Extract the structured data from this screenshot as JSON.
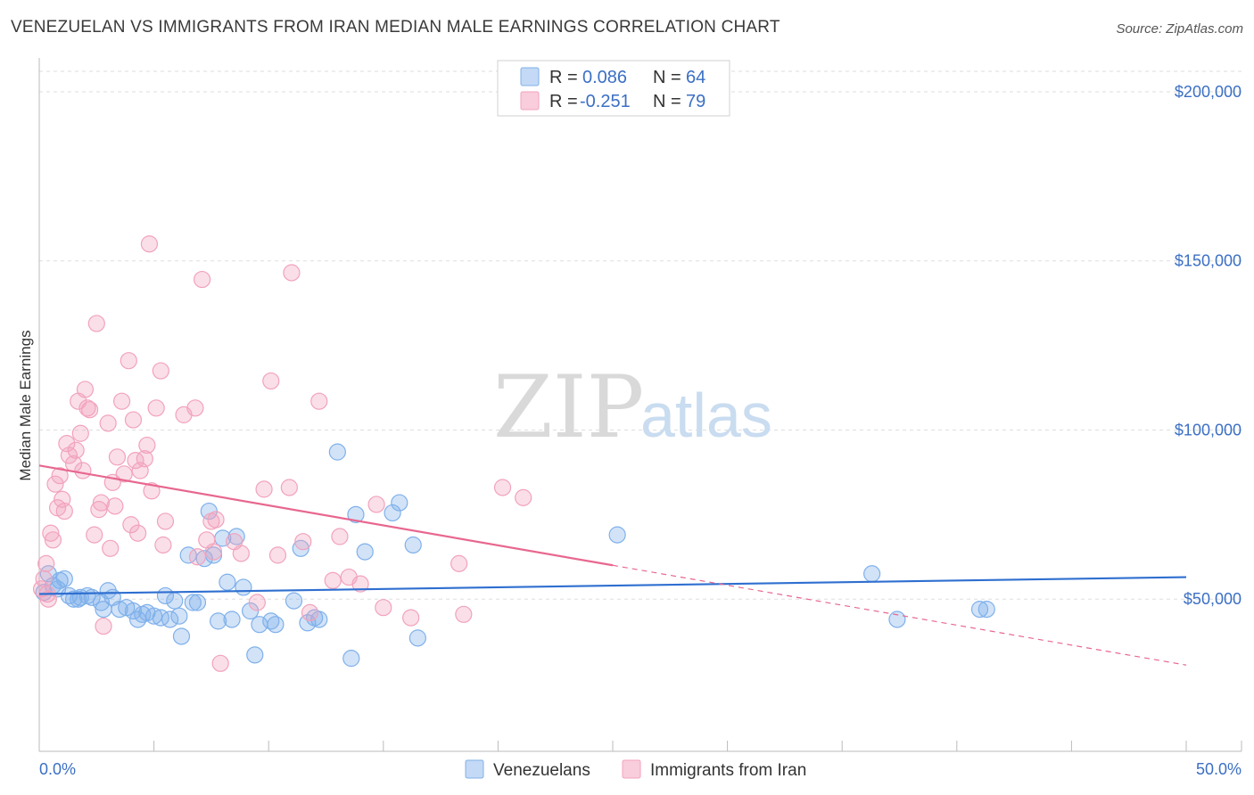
{
  "header": {
    "title": "VENEZUELAN VS IMMIGRANTS FROM IRAN MEDIAN MALE EARNINGS CORRELATION CHART",
    "source": "Source: ZipAtlas.com"
  },
  "watermark": {
    "zip": "ZIP",
    "atlas": "atlas"
  },
  "legend": {
    "rows": [
      {
        "r_label": "R =",
        "r_value": "0.086",
        "n_label": "N =",
        "n_value": "64",
        "color": "#7fb0ea"
      },
      {
        "r_label": "R =",
        "r_value": "-0.251",
        "n_label": "N =",
        "n_value": "79",
        "color": "#f2a2bc"
      }
    ]
  },
  "chart_data": {
    "type": "scatter",
    "title": "VENEZUELAN VS IMMIGRANTS FROM IRAN MEDIAN MALE EARNINGS CORRELATION CHART",
    "xlabel": "",
    "ylabel": "Median Male Earnings",
    "xlim": [
      0,
      50
    ],
    "ylim": [
      5000,
      210000
    ],
    "x_tick_labels": [
      "0.0%",
      "50.0%"
    ],
    "y_ticks": [
      50000,
      100000,
      150000,
      200000
    ],
    "y_tick_labels": [
      "$50,000",
      "$100,000",
      "$150,000",
      "$200,000"
    ],
    "grid": true,
    "legend_position": "top-center",
    "series": [
      {
        "name": "Venezuelans",
        "color": "#7fb0ea",
        "line_color": "#2f6fd0",
        "trend": {
          "x": [
            0,
            50
          ],
          "y": [
            51500,
            56500
          ],
          "dashed_from_x": null
        },
        "points": [
          [
            0.2,
            52000
          ],
          [
            0.4,
            57500
          ],
          [
            0.6,
            54000
          ],
          [
            0.9,
            55500
          ],
          [
            1.1,
            56000
          ],
          [
            1.3,
            51000
          ],
          [
            1.5,
            50000
          ],
          [
            1.8,
            50500
          ],
          [
            2.1,
            51000
          ],
          [
            2.3,
            50500
          ],
          [
            2.7,
            49000
          ],
          [
            2.8,
            47000
          ],
          [
            3.0,
            52500
          ],
          [
            3.2,
            50500
          ],
          [
            3.5,
            47000
          ],
          [
            3.8,
            47500
          ],
          [
            4.1,
            46500
          ],
          [
            4.3,
            44000
          ],
          [
            4.5,
            45500
          ],
          [
            4.7,
            46000
          ],
          [
            5.0,
            45000
          ],
          [
            5.3,
            44500
          ],
          [
            5.5,
            51000
          ],
          [
            5.7,
            44000
          ],
          [
            5.9,
            49500
          ],
          [
            6.1,
            45000
          ],
          [
            6.2,
            39000
          ],
          [
            6.5,
            63000
          ],
          [
            6.7,
            49000
          ],
          [
            6.9,
            49000
          ],
          [
            7.2,
            62000
          ],
          [
            7.4,
            76000
          ],
          [
            7.6,
            63000
          ],
          [
            7.8,
            43500
          ],
          [
            8.0,
            68000
          ],
          [
            8.2,
            55000
          ],
          [
            8.4,
            44000
          ],
          [
            8.6,
            68500
          ],
          [
            8.9,
            53500
          ],
          [
            9.2,
            46500
          ],
          [
            9.4,
            33500
          ],
          [
            9.6,
            42500
          ],
          [
            10.1,
            43500
          ],
          [
            10.3,
            42500
          ],
          [
            11.1,
            49500
          ],
          [
            11.4,
            65000
          ],
          [
            11.7,
            43000
          ],
          [
            12.0,
            44500
          ],
          [
            12.2,
            44000
          ],
          [
            13.0,
            93500
          ],
          [
            13.6,
            32500
          ],
          [
            13.8,
            75000
          ],
          [
            14.2,
            64000
          ],
          [
            15.4,
            75500
          ],
          [
            15.7,
            78500
          ],
          [
            16.3,
            66000
          ],
          [
            16.5,
            38500
          ],
          [
            25.2,
            69000
          ],
          [
            36.3,
            57500
          ],
          [
            37.4,
            44000
          ],
          [
            41.0,
            47000
          ],
          [
            41.3,
            47000
          ],
          [
            0.8,
            53000
          ],
          [
            1.7,
            50000
          ]
        ]
      },
      {
        "name": "Immigrants from Iran",
        "color": "#f2a2bc",
        "line_color": "#e8678f",
        "trend": {
          "x": [
            0,
            50
          ],
          "y": [
            89500,
            30500
          ],
          "dashed_from_x": 25
        },
        "points": [
          [
            0.2,
            56000
          ],
          [
            0.3,
            60500
          ],
          [
            0.4,
            50000
          ],
          [
            0.5,
            69500
          ],
          [
            0.6,
            67500
          ],
          [
            0.7,
            84000
          ],
          [
            0.8,
            77000
          ],
          [
            0.9,
            86500
          ],
          [
            1.0,
            79500
          ],
          [
            1.1,
            76000
          ],
          [
            1.2,
            96000
          ],
          [
            1.3,
            92500
          ],
          [
            1.5,
            90000
          ],
          [
            1.6,
            94000
          ],
          [
            1.7,
            108500
          ],
          [
            1.8,
            99000
          ],
          [
            1.9,
            88000
          ],
          [
            2.0,
            112000
          ],
          [
            2.1,
            106500
          ],
          [
            2.2,
            106000
          ],
          [
            2.4,
            69000
          ],
          [
            2.5,
            131500
          ],
          [
            2.6,
            76500
          ],
          [
            2.7,
            78500
          ],
          [
            2.8,
            42000
          ],
          [
            3.0,
            102000
          ],
          [
            3.1,
            65000
          ],
          [
            3.2,
            84500
          ],
          [
            3.3,
            77500
          ],
          [
            3.4,
            92000
          ],
          [
            3.6,
            108500
          ],
          [
            3.7,
            87000
          ],
          [
            3.9,
            120500
          ],
          [
            4.0,
            72000
          ],
          [
            4.1,
            103000
          ],
          [
            4.2,
            91000
          ],
          [
            4.3,
            69500
          ],
          [
            4.4,
            88000
          ],
          [
            4.6,
            91500
          ],
          [
            4.7,
            95500
          ],
          [
            4.8,
            155000
          ],
          [
            4.9,
            82000
          ],
          [
            5.1,
            106500
          ],
          [
            5.3,
            117500
          ],
          [
            5.4,
            66000
          ],
          [
            5.5,
            73000
          ],
          [
            6.3,
            104500
          ],
          [
            6.8,
            106500
          ],
          [
            6.9,
            62500
          ],
          [
            7.1,
            144500
          ],
          [
            7.3,
            67500
          ],
          [
            7.5,
            73000
          ],
          [
            7.6,
            64000
          ],
          [
            7.7,
            73500
          ],
          [
            7.9,
            31000
          ],
          [
            8.5,
            67000
          ],
          [
            8.8,
            63500
          ],
          [
            9.5,
            49000
          ],
          [
            9.8,
            82500
          ],
          [
            10.1,
            114500
          ],
          [
            10.4,
            63000
          ],
          [
            10.9,
            83000
          ],
          [
            11.0,
            146500
          ],
          [
            11.5,
            67000
          ],
          [
            11.8,
            46000
          ],
          [
            12.2,
            108500
          ],
          [
            12.8,
            55500
          ],
          [
            13.1,
            68500
          ],
          [
            13.5,
            56500
          ],
          [
            14.0,
            54500
          ],
          [
            14.7,
            78000
          ],
          [
            15.0,
            47500
          ],
          [
            16.2,
            44500
          ],
          [
            18.3,
            60500
          ],
          [
            18.5,
            45500
          ],
          [
            20.2,
            83000
          ],
          [
            21.1,
            80000
          ],
          [
            0.1,
            53000
          ],
          [
            0.35,
            51500
          ]
        ]
      }
    ]
  }
}
